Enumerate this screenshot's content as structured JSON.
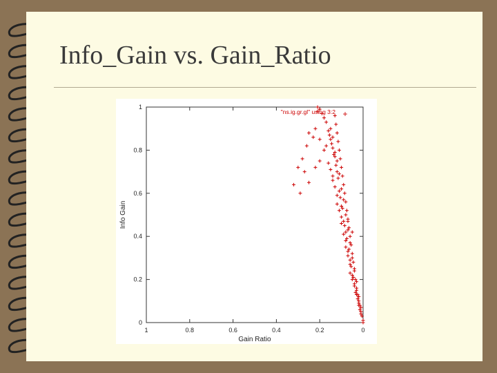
{
  "slide": {
    "title": "Info_Gain vs. Gain_Ratio"
  },
  "colors": {
    "background": "#8b7355",
    "slide": "#fdfbe3",
    "points": "#cc0000",
    "ring": "#222222"
  },
  "icons": {
    "binding": "spiral-binding-ring"
  },
  "chart_data": {
    "type": "scatter",
    "title": "",
    "xlabel": "Gain Ratio",
    "ylabel": "Info Gain",
    "xlim": [
      1,
      0
    ],
    "ylim": [
      0,
      1
    ],
    "x_reversed": true,
    "xticks": [
      "1",
      "0.8",
      "0.6",
      "0.4",
      "0.2",
      "0"
    ],
    "yticks": [
      "0",
      "0.2",
      "0.4",
      "0.6",
      "0.8",
      "1"
    ],
    "grid": false,
    "legend": {
      "position": "top-right",
      "marker": "+"
    },
    "series": [
      {
        "name": "\"ns.ig.gr.gl\" using 3:2",
        "marker": "+",
        "x": [
          0.0,
          0.005,
          0.01,
          0.015,
          0.02,
          0.025,
          0.03,
          0.035,
          0.04,
          0.045,
          0.05,
          0.055,
          0.06,
          0.065,
          0.07,
          0.075,
          0.08,
          0.085,
          0.09,
          0.095,
          0.1,
          0.105,
          0.11,
          0.115,
          0.12,
          0.125,
          0.13,
          0.0,
          0.01,
          0.02,
          0.03,
          0.04,
          0.05,
          0.06,
          0.07,
          0.08,
          0.09,
          0.1,
          0.11,
          0.12,
          0.13,
          0.14,
          0.15,
          0.02,
          0.04,
          0.06,
          0.08,
          0.1,
          0.12,
          0.14,
          0.16,
          0.18,
          0.2,
          0.22,
          0.25,
          0.3,
          0.32,
          0.21,
          0.2,
          0.22,
          0.25,
          0.27,
          0.29,
          0.03,
          0.05,
          0.07,
          0.09,
          0.11,
          0.13,
          0.15,
          0.17,
          0.01,
          0.015,
          0.025,
          0.035,
          0.045,
          0.055,
          0.065,
          0.075,
          0.085,
          0.095,
          0.105,
          0.115,
          0.125,
          0.135,
          0.145,
          0.155,
          0.06,
          0.08,
          0.1,
          0.12,
          0.14,
          0.04,
          0.03,
          0.02,
          0.06,
          0.05,
          0.07,
          0.08,
          0.09,
          0.11,
          0.1,
          0.12,
          0.13,
          0.14,
          0.15,
          0.16,
          0.17,
          0.18,
          0.19,
          0.2,
          0.21,
          0.23,
          0.26,
          0.28,
          0.05,
          0.07
        ],
        "y": [
          0.0,
          0.03,
          0.05,
          0.08,
          0.1,
          0.13,
          0.16,
          0.2,
          0.24,
          0.28,
          0.32,
          0.36,
          0.4,
          0.44,
          0.48,
          0.52,
          0.56,
          0.6,
          0.64,
          0.68,
          0.72,
          0.76,
          0.8,
          0.84,
          0.88,
          0.92,
          0.96,
          0.01,
          0.07,
          0.12,
          0.19,
          0.25,
          0.3,
          0.37,
          0.43,
          0.5,
          0.57,
          0.62,
          0.69,
          0.75,
          0.79,
          0.86,
          0.9,
          0.09,
          0.17,
          0.27,
          0.35,
          0.46,
          0.55,
          0.66,
          0.74,
          0.8,
          0.85,
          0.9,
          0.88,
          0.72,
          0.64,
          0.98,
          0.75,
          0.72,
          0.65,
          0.7,
          0.6,
          0.15,
          0.22,
          0.33,
          0.41,
          0.52,
          0.63,
          0.71,
          0.82,
          0.04,
          0.06,
          0.11,
          0.14,
          0.21,
          0.26,
          0.34,
          0.39,
          0.45,
          0.53,
          0.58,
          0.67,
          0.73,
          0.78,
          0.83,
          0.87,
          0.29,
          0.38,
          0.49,
          0.59,
          0.68,
          0.18,
          0.13,
          0.08,
          0.23,
          0.2,
          0.31,
          0.42,
          0.47,
          0.61,
          0.54,
          0.7,
          0.77,
          0.81,
          0.85,
          0.89,
          0.93,
          0.95,
          0.97,
          0.99,
          1.0,
          0.86,
          0.82,
          0.76,
          0.42,
          0.47
        ]
      }
    ]
  }
}
